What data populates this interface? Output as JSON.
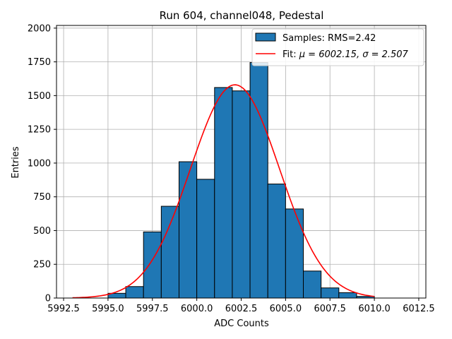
{
  "chart_data": {
    "type": "bar",
    "title": "Run 604, channel048, Pedestal",
    "xlabel": "ADC Counts",
    "ylabel": "Entries",
    "xlim": [
      5992.1,
      6012.9
    ],
    "ylim": [
      0,
      2020
    ],
    "xticks": [
      5992.5,
      5995.0,
      5997.5,
      6000.0,
      6002.5,
      6005.0,
      6007.5,
      6010.0,
      6012.5
    ],
    "xtick_labels": [
      "5992.5",
      "5995.0",
      "5997.5",
      "6000.0",
      "6002.5",
      "6005.0",
      "6007.5",
      "6010.0",
      "6012.5"
    ],
    "yticks": [
      0,
      250,
      500,
      750,
      1000,
      1250,
      1500,
      1750,
      2000
    ],
    "ytick_labels": [
      "0",
      "250",
      "500",
      "750",
      "1000",
      "1250",
      "1500",
      "1750",
      "2000"
    ],
    "grid": true,
    "legend_position": "top-right",
    "histogram": {
      "name": "Samples: RMS=2.42",
      "color": "#1f77b4",
      "edge_color": "#000000",
      "bin_edges": [
        5995,
        5996,
        5997,
        5998,
        5999,
        6000,
        6001,
        6002,
        6003,
        6004,
        6005,
        6006,
        6007,
        6008,
        6009,
        6010
      ],
      "values": [
        35,
        85,
        490,
        680,
        1010,
        880,
        1560,
        1535,
        1745,
        845,
        660,
        200,
        75,
        40,
        12
      ]
    },
    "fit": {
      "name": "Fit: μ = 6002.15, σ = 2.507",
      "label_prefix": "Fit: ",
      "mu_label": "μ = 6002.15, ",
      "sigma_label": "σ = 2.507",
      "color": "#ff0000",
      "mu": 6002.15,
      "sigma": 2.507,
      "amplitude": 1580,
      "x_range": [
        5993,
        6010
      ]
    }
  }
}
